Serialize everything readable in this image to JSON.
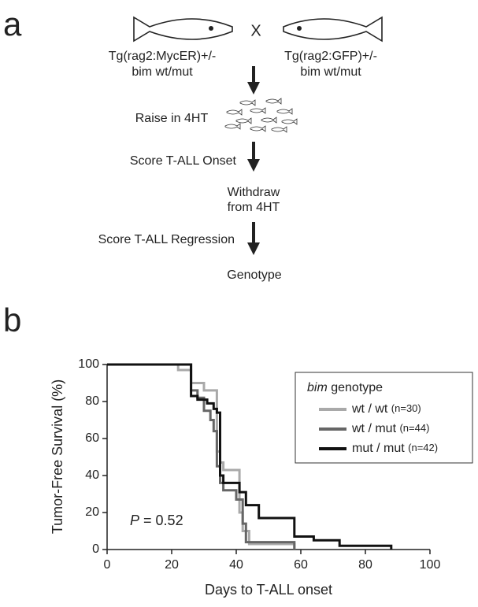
{
  "panel_a": {
    "label": "a",
    "cross": "X",
    "parent_left": [
      "Tg(rag2:MycER)+/-",
      "bim wt/mut"
    ],
    "parent_right": [
      "Tg(rag2:GFP)+/-",
      "bim wt/mut"
    ],
    "step_raise": "Raise in 4HT",
    "step_onset": "Score T-ALL Onset",
    "step_withdraw": [
      "Withdraw",
      "from 4HT"
    ],
    "step_regression": "Score T-ALL Regression",
    "step_genotype": "Genotype"
  },
  "chart_data": {
    "type": "step",
    "panel_label": "b",
    "x_label": "Days to T-ALL onset",
    "y_label": "Tumor-Free Survival  (%)",
    "legend_title": {
      "italic": "bim",
      "text": "genotype"
    },
    "annotation": {
      "italic": "P",
      "text": "= 0.52"
    },
    "xlim": [
      0,
      100
    ],
    "xticks": [
      0,
      20,
      40,
      60,
      80,
      100
    ],
    "ylim": [
      0,
      100
    ],
    "yticks": [
      0,
      20,
      40,
      60,
      80,
      100
    ],
    "series": [
      {
        "name": "wt / wt",
        "count_label": "(n=30)",
        "color": "#a9a9a9",
        "x": [
          0,
          22,
          26,
          30,
          34,
          35,
          36,
          41,
          42,
          44,
          58
        ],
        "values": [
          100,
          97,
          90,
          86,
          53,
          47,
          43,
          20,
          10,
          3,
          0
        ]
      },
      {
        "name": "wt / mut",
        "count_label": "(n=44)",
        "color": "#666666",
        "x": [
          0,
          26,
          28,
          30,
          32,
          33,
          34,
          35,
          36,
          40,
          42,
          43,
          58
        ],
        "values": [
          100,
          86,
          82,
          75,
          70,
          64,
          45,
          36,
          32,
          27,
          14,
          4,
          0
        ]
      },
      {
        "name": "mut / mut",
        "count_label": "(n=42)",
        "color": "#111111",
        "x": [
          0,
          26,
          28,
          31,
          33,
          34,
          35,
          36,
          41,
          43,
          47,
          58,
          64,
          72,
          80,
          88
        ],
        "values": [
          100,
          83,
          81,
          79,
          76,
          74,
          40,
          36,
          31,
          24,
          17,
          7,
          5,
          2,
          2,
          0
        ]
      }
    ]
  }
}
